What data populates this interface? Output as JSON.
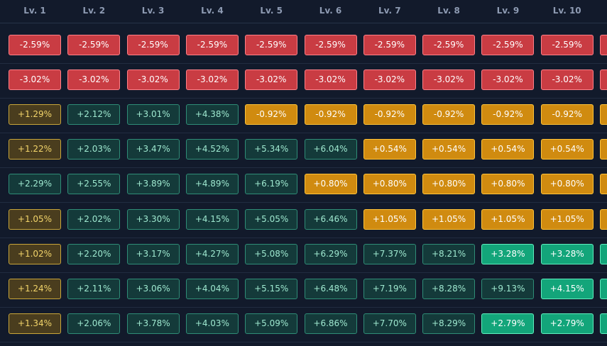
{
  "levels": [
    "Lv. 1",
    "Lv. 2",
    "Lv. 3",
    "Lv. 4",
    "Lv. 5",
    "Lv. 6",
    "Lv. 7",
    "Lv. 8",
    "Lv. 9",
    "Lv. 10"
  ],
  "colors": {
    "negative": "#c93c43",
    "warning": "#d08b10",
    "warning_dim": "#4a3d1e",
    "positive_muted": "#143a3a",
    "positive_strong": "#13a57a",
    "background": "#121a2b"
  },
  "rows": [
    {
      "cells": [
        {
          "v": "-2.59%",
          "s": "neg"
        },
        {
          "v": "-2.59%",
          "s": "neg"
        },
        {
          "v": "-2.59%",
          "s": "neg"
        },
        {
          "v": "-2.59%",
          "s": "neg"
        },
        {
          "v": "-2.59%",
          "s": "neg"
        },
        {
          "v": "-2.59%",
          "s": "neg"
        },
        {
          "v": "-2.59%",
          "s": "neg"
        },
        {
          "v": "-2.59%",
          "s": "neg"
        },
        {
          "v": "-2.59%",
          "s": "neg"
        },
        {
          "v": "-2.59%",
          "s": "neg"
        },
        {
          "v": "",
          "s": "neg"
        }
      ]
    },
    {
      "cells": [
        {
          "v": "-3.02%",
          "s": "neg"
        },
        {
          "v": "-3.02%",
          "s": "neg"
        },
        {
          "v": "-3.02%",
          "s": "neg"
        },
        {
          "v": "-3.02%",
          "s": "neg"
        },
        {
          "v": "-3.02%",
          "s": "neg"
        },
        {
          "v": "-3.02%",
          "s": "neg"
        },
        {
          "v": "-3.02%",
          "s": "neg"
        },
        {
          "v": "-3.02%",
          "s": "neg"
        },
        {
          "v": "-3.02%",
          "s": "neg"
        },
        {
          "v": "-3.02%",
          "s": "neg"
        },
        {
          "v": "",
          "s": "neg"
        }
      ]
    },
    {
      "cells": [
        {
          "v": "+1.29%",
          "s": "dim"
        },
        {
          "v": "+2.12%",
          "s": "tea"
        },
        {
          "v": "+3.01%",
          "s": "tea"
        },
        {
          "v": "+4.38%",
          "s": "tea"
        },
        {
          "v": "-0.92%",
          "s": "yel"
        },
        {
          "v": "-0.92%",
          "s": "yel"
        },
        {
          "v": "-0.92%",
          "s": "yel"
        },
        {
          "v": "-0.92%",
          "s": "yel"
        },
        {
          "v": "-0.92%",
          "s": "yel"
        },
        {
          "v": "-0.92%",
          "s": "yel"
        },
        {
          "v": "",
          "s": "yel"
        }
      ]
    },
    {
      "cells": [
        {
          "v": "+1.22%",
          "s": "dim"
        },
        {
          "v": "+2.03%",
          "s": "tea"
        },
        {
          "v": "+3.47%",
          "s": "tea"
        },
        {
          "v": "+4.52%",
          "s": "tea"
        },
        {
          "v": "+5.34%",
          "s": "tea"
        },
        {
          "v": "+6.04%",
          "s": "tea"
        },
        {
          "v": "+0.54%",
          "s": "yel"
        },
        {
          "v": "+0.54%",
          "s": "yel"
        },
        {
          "v": "+0.54%",
          "s": "yel"
        },
        {
          "v": "+0.54%",
          "s": "yel"
        },
        {
          "v": "",
          "s": "yel"
        }
      ]
    },
    {
      "cells": [
        {
          "v": "+2.29%",
          "s": "tea"
        },
        {
          "v": "+2.55%",
          "s": "tea"
        },
        {
          "v": "+3.89%",
          "s": "tea"
        },
        {
          "v": "+4.89%",
          "s": "tea"
        },
        {
          "v": "+6.19%",
          "s": "tea"
        },
        {
          "v": "+0.80%",
          "s": "yel"
        },
        {
          "v": "+0.80%",
          "s": "yel"
        },
        {
          "v": "+0.80%",
          "s": "yel"
        },
        {
          "v": "+0.80%",
          "s": "yel"
        },
        {
          "v": "+0.80%",
          "s": "yel"
        },
        {
          "v": "",
          "s": "yel"
        }
      ]
    },
    {
      "cells": [
        {
          "v": "+1.05%",
          "s": "dim"
        },
        {
          "v": "+2.02%",
          "s": "tea"
        },
        {
          "v": "+3.30%",
          "s": "tea"
        },
        {
          "v": "+4.15%",
          "s": "tea"
        },
        {
          "v": "+5.05%",
          "s": "tea"
        },
        {
          "v": "+6.46%",
          "s": "tea"
        },
        {
          "v": "+1.05%",
          "s": "yel"
        },
        {
          "v": "+1.05%",
          "s": "yel"
        },
        {
          "v": "+1.05%",
          "s": "yel"
        },
        {
          "v": "+1.05%",
          "s": "yel"
        },
        {
          "v": "",
          "s": "yel"
        }
      ]
    },
    {
      "cells": [
        {
          "v": "+1.02%",
          "s": "dim"
        },
        {
          "v": "+2.20%",
          "s": "tea"
        },
        {
          "v": "+3.17%",
          "s": "tea"
        },
        {
          "v": "+4.27%",
          "s": "tea"
        },
        {
          "v": "+5.08%",
          "s": "tea"
        },
        {
          "v": "+6.29%",
          "s": "tea"
        },
        {
          "v": "+7.37%",
          "s": "tea"
        },
        {
          "v": "+8.21%",
          "s": "tea"
        },
        {
          "v": "+3.28%",
          "s": "grn"
        },
        {
          "v": "+3.28%",
          "s": "grn"
        },
        {
          "v": "",
          "s": "grn"
        }
      ]
    },
    {
      "cells": [
        {
          "v": "+1.24%",
          "s": "dim"
        },
        {
          "v": "+2.11%",
          "s": "tea"
        },
        {
          "v": "+3.06%",
          "s": "tea"
        },
        {
          "v": "+4.04%",
          "s": "tea"
        },
        {
          "v": "+5.15%",
          "s": "tea"
        },
        {
          "v": "+6.48%",
          "s": "tea"
        },
        {
          "v": "+7.19%",
          "s": "tea"
        },
        {
          "v": "+8.28%",
          "s": "tea"
        },
        {
          "v": "+9.13%",
          "s": "tea"
        },
        {
          "v": "+4.15%",
          "s": "grn"
        },
        {
          "v": "",
          "s": "grn"
        }
      ]
    },
    {
      "cells": [
        {
          "v": "+1.34%",
          "s": "dim"
        },
        {
          "v": "+2.06%",
          "s": "tea"
        },
        {
          "v": "+3.78%",
          "s": "tea"
        },
        {
          "v": "+4.03%",
          "s": "tea"
        },
        {
          "v": "+5.09%",
          "s": "tea"
        },
        {
          "v": "+6.86%",
          "s": "tea"
        },
        {
          "v": "+7.70%",
          "s": "tea"
        },
        {
          "v": "+8.29%",
          "s": "tea"
        },
        {
          "v": "+2.79%",
          "s": "grn"
        },
        {
          "v": "+2.79%",
          "s": "grn"
        },
        {
          "v": "",
          "s": "grn"
        }
      ]
    }
  ]
}
